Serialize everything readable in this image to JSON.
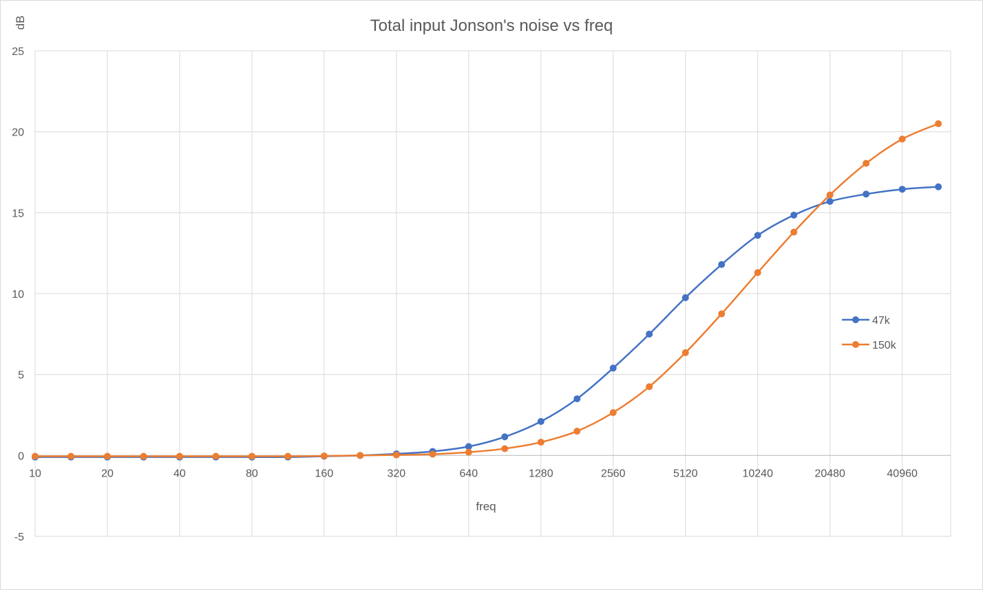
{
  "chart_data": {
    "type": "line",
    "title": "Total input Jonson's noise vs freq",
    "xlabel": "freq",
    "ylabel": "dB",
    "x_scale": "log2",
    "x_tick_labels": [
      "10",
      "20",
      "40",
      "80",
      "160",
      "320",
      "640",
      "1280",
      "2560",
      "5120",
      "10240",
      "20480",
      "40960"
    ],
    "x": [
      10,
      14.1,
      20,
      28.3,
      40,
      56.6,
      80,
      113,
      160,
      226,
      320,
      453,
      640,
      905,
      1280,
      1810,
      2560,
      3620,
      5120,
      7240,
      10240,
      14480,
      20480,
      28960,
      40960,
      57920
    ],
    "ylim": [
      -5,
      25
    ],
    "y_ticks": [
      -5,
      0,
      5,
      10,
      15,
      20,
      25
    ],
    "grid": true,
    "legend_position": "right",
    "series": [
      {
        "name": "47k",
        "color": "#4472C4",
        "values": [
          -0.1,
          -0.1,
          -0.1,
          -0.1,
          -0.1,
          -0.1,
          -0.1,
          -0.1,
          -0.05,
          0.0,
          0.1,
          0.25,
          0.55,
          1.15,
          2.1,
          3.5,
          5.4,
          7.5,
          9.75,
          11.8,
          13.6,
          14.85,
          15.7,
          16.15,
          16.45,
          16.6
        ]
      },
      {
        "name": "150k",
        "color": "#ED7D31",
        "values": [
          -0.05,
          -0.05,
          -0.05,
          -0.05,
          -0.05,
          -0.05,
          -0.05,
          -0.05,
          -0.03,
          0.0,
          0.03,
          0.08,
          0.2,
          0.42,
          0.82,
          1.5,
          2.65,
          4.25,
          6.35,
          8.75,
          11.3,
          13.8,
          16.1,
          18.05,
          19.55,
          20.5
        ]
      }
    ]
  }
}
